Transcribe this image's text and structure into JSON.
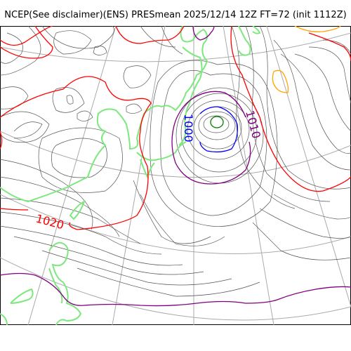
{
  "header": {
    "title": "NCEP(See disclaimer)(ENS) PRESmean 2025/12/14 12Z FT=72 (init 1112Z)"
  },
  "map": {
    "contour_labels": {
      "left": "1020",
      "center_low": "1000",
      "center_right": "1010"
    },
    "colors": {
      "isobar_minor": "#555555",
      "isobar_1020": "#ff0000",
      "isobar_1010": "#800080",
      "isobar_1000": "#0000ff",
      "isobar_990": "#008000",
      "isobar_1030": "#ffa500",
      "coastline": "#7de87d",
      "graticule": "#aaaaaa"
    }
  }
}
